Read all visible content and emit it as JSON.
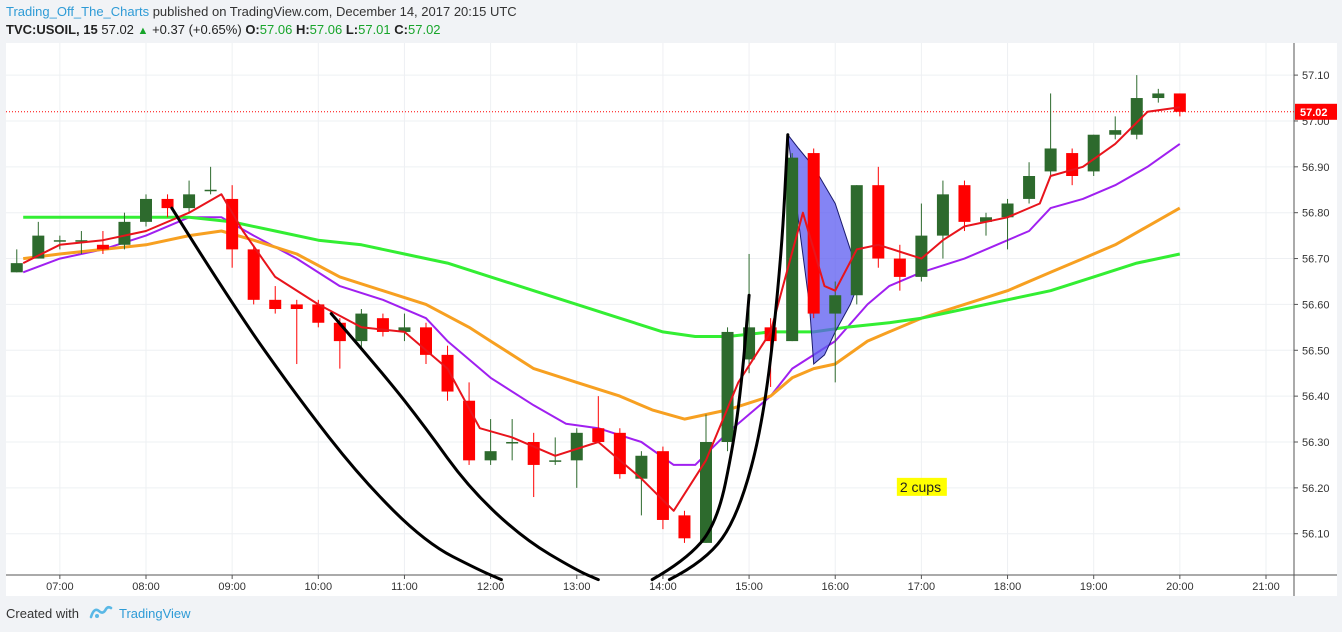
{
  "header": {
    "author": "Trading_Off_The_Charts",
    "published_text": "published on TradingView.com, December 14, 2017 20:15 UTC"
  },
  "symbol_bar": {
    "symbol": "TVC:USOIL, 15",
    "last": "57.02",
    "change": "+0.37 (+0.65%)",
    "o_label": "O:",
    "o": "57.06",
    "h_label": "H:",
    "h": "57.06",
    "l_label": "L:",
    "l": "57.01",
    "c_label": "C:",
    "c": "57.02"
  },
  "footer": {
    "created_with": "Created with",
    "brand": "TradingView"
  },
  "colors": {
    "bull": "#2d6a2d",
    "bear": "#ff0000",
    "ema_red": "#e8141c",
    "ema_purple": "#a020f0",
    "ema_orange": "#f7a021",
    "ema_green": "#33ee33",
    "cup_fill": "#5b5bf0",
    "price_tag": "#ff0000",
    "annotation_bg": "#ffff00"
  },
  "chart_data": {
    "type": "candlestick",
    "x_ticks": [
      "07:00",
      "08:00",
      "09:00",
      "10:00",
      "11:00",
      "12:00",
      "13:00",
      "14:00",
      "15:00",
      "16:00",
      "17:00",
      "18:00",
      "19:00",
      "20:00",
      "21:00"
    ],
    "x_tick_slots": [
      2,
      6,
      10,
      14,
      18,
      22,
      26,
      30,
      34,
      38,
      42,
      46,
      50,
      54,
      58
    ],
    "y_ticks": [
      "56.10",
      "56.20",
      "56.30",
      "56.40",
      "56.50",
      "56.60",
      "56.70",
      "56.80",
      "56.90",
      "57.00",
      "57.10"
    ],
    "y_tick_values": [
      56.1,
      56.2,
      56.3,
      56.4,
      56.5,
      56.6,
      56.7,
      56.8,
      56.9,
      57.0,
      57.1
    ],
    "ylim": [
      56.01,
      57.17
    ],
    "slot_count": 59.8,
    "last_price": 57.02,
    "last_price_label": "57.02",
    "annotation": "2 cups",
    "candles": [
      {
        "o": 56.67,
        "h": 56.72,
        "l": 56.67,
        "c": 56.69
      },
      {
        "o": 56.7,
        "h": 56.78,
        "l": 56.7,
        "c": 56.75
      },
      {
        "o": 56.74,
        "h": 56.75,
        "l": 56.72,
        "c": 56.74
      },
      {
        "o": 56.74,
        "h": 56.76,
        "l": 56.71,
        "c": 56.74
      },
      {
        "o": 56.73,
        "h": 56.76,
        "l": 56.71,
        "c": 56.72
      },
      {
        "o": 56.73,
        "h": 56.8,
        "l": 56.72,
        "c": 56.78
      },
      {
        "o": 56.78,
        "h": 56.84,
        "l": 56.77,
        "c": 56.83
      },
      {
        "o": 56.83,
        "h": 56.84,
        "l": 56.79,
        "c": 56.81
      },
      {
        "o": 56.81,
        "h": 56.87,
        "l": 56.8,
        "c": 56.84
      },
      {
        "o": 56.85,
        "h": 56.9,
        "l": 56.84,
        "c": 56.85
      },
      {
        "o": 56.83,
        "h": 56.86,
        "l": 56.68,
        "c": 56.72
      },
      {
        "o": 56.72,
        "h": 56.73,
        "l": 56.6,
        "c": 56.61
      },
      {
        "o": 56.61,
        "h": 56.64,
        "l": 56.58,
        "c": 56.59
      },
      {
        "o": 56.6,
        "h": 56.61,
        "l": 56.47,
        "c": 56.59
      },
      {
        "o": 56.6,
        "h": 56.61,
        "l": 56.55,
        "c": 56.56
      },
      {
        "o": 56.56,
        "h": 56.57,
        "l": 56.46,
        "c": 56.52
      },
      {
        "o": 56.52,
        "h": 56.59,
        "l": 56.5,
        "c": 56.58
      },
      {
        "o": 56.57,
        "h": 56.58,
        "l": 56.53,
        "c": 56.54
      },
      {
        "o": 56.54,
        "h": 56.58,
        "l": 56.52,
        "c": 56.55
      },
      {
        "o": 56.55,
        "h": 56.56,
        "l": 56.47,
        "c": 56.49
      },
      {
        "o": 56.49,
        "h": 56.51,
        "l": 56.39,
        "c": 56.41
      },
      {
        "o": 56.39,
        "h": 56.43,
        "l": 56.25,
        "c": 56.26
      },
      {
        "o": 56.26,
        "h": 56.35,
        "l": 56.25,
        "c": 56.28
      },
      {
        "o": 56.3,
        "h": 56.35,
        "l": 56.26,
        "c": 56.3
      },
      {
        "o": 56.3,
        "h": 56.32,
        "l": 56.18,
        "c": 56.25
      },
      {
        "o": 56.26,
        "h": 56.31,
        "l": 56.25,
        "c": 56.26
      },
      {
        "o": 56.26,
        "h": 56.33,
        "l": 56.2,
        "c": 56.32
      },
      {
        "o": 56.33,
        "h": 56.4,
        "l": 56.3,
        "c": 56.3
      },
      {
        "o": 56.32,
        "h": 56.33,
        "l": 56.22,
        "c": 56.23
      },
      {
        "o": 56.22,
        "h": 56.28,
        "l": 56.14,
        "c": 56.27
      },
      {
        "o": 56.28,
        "h": 56.29,
        "l": 56.11,
        "c": 56.13
      },
      {
        "o": 56.14,
        "h": 56.15,
        "l": 56.08,
        "c": 56.09
      },
      {
        "o": 56.08,
        "h": 56.36,
        "l": 56.08,
        "c": 56.3
      },
      {
        "o": 56.3,
        "h": 56.55,
        "l": 56.28,
        "c": 56.54
      },
      {
        "o": 56.48,
        "h": 56.71,
        "l": 56.45,
        "c": 56.55
      },
      {
        "o": 56.55,
        "h": 56.57,
        "l": 56.42,
        "c": 56.52
      },
      {
        "o": 56.52,
        "h": 56.93,
        "l": 56.52,
        "c": 56.92
      },
      {
        "o": 56.93,
        "h": 56.94,
        "l": 56.57,
        "c": 56.58
      },
      {
        "o": 56.58,
        "h": 56.65,
        "l": 56.43,
        "c": 56.62
      },
      {
        "o": 56.62,
        "h": 56.86,
        "l": 56.6,
        "c": 56.86
      },
      {
        "o": 56.86,
        "h": 56.9,
        "l": 56.68,
        "c": 56.7
      },
      {
        "o": 56.7,
        "h": 56.73,
        "l": 56.63,
        "c": 56.66
      },
      {
        "o": 56.66,
        "h": 56.82,
        "l": 56.65,
        "c": 56.75
      },
      {
        "o": 56.75,
        "h": 56.87,
        "l": 56.7,
        "c": 56.84
      },
      {
        "o": 56.86,
        "h": 56.87,
        "l": 56.76,
        "c": 56.78
      },
      {
        "o": 56.78,
        "h": 56.8,
        "l": 56.75,
        "c": 56.79
      },
      {
        "o": 56.79,
        "h": 56.83,
        "l": 56.72,
        "c": 56.82
      },
      {
        "o": 56.83,
        "h": 56.91,
        "l": 56.82,
        "c": 56.88
      },
      {
        "o": 56.89,
        "h": 57.06,
        "l": 56.88,
        "c": 56.94
      },
      {
        "o": 56.93,
        "h": 56.94,
        "l": 56.86,
        "c": 56.88
      },
      {
        "o": 56.89,
        "h": 56.97,
        "l": 56.88,
        "c": 56.97
      },
      {
        "o": 56.97,
        "h": 57.01,
        "l": 56.96,
        "c": 56.98
      },
      {
        "o": 56.97,
        "h": 57.1,
        "l": 56.96,
        "c": 57.05
      },
      {
        "o": 57.05,
        "h": 57.07,
        "l": 57.04,
        "c": 57.06
      },
      {
        "o": 57.06,
        "h": 57.06,
        "l": 57.01,
        "c": 57.02
      }
    ],
    "lines": [
      {
        "id": "ema-red",
        "color": "#e8141c",
        "width": 2,
        "points": [
          [
            0.3,
            56.69
          ],
          [
            2,
            56.73
          ],
          [
            4,
            56.74
          ],
          [
            6,
            56.76
          ],
          [
            8,
            56.8
          ],
          [
            9.5,
            56.84
          ],
          [
            10.5,
            56.76
          ],
          [
            12,
            56.66
          ],
          [
            14,
            56.6
          ],
          [
            16,
            56.55
          ],
          [
            18,
            56.54
          ],
          [
            20,
            56.46
          ],
          [
            21.5,
            56.33
          ],
          [
            23,
            56.31
          ],
          [
            25,
            56.27
          ],
          [
            27,
            56.3
          ],
          [
            29,
            56.22
          ],
          [
            30.5,
            56.15
          ],
          [
            32,
            56.26
          ],
          [
            33.5,
            56.43
          ],
          [
            35,
            56.54
          ],
          [
            36.5,
            56.8
          ],
          [
            37.5,
            56.64
          ],
          [
            38,
            56.63
          ],
          [
            39,
            56.72
          ],
          [
            40,
            56.73
          ],
          [
            42,
            56.7
          ],
          [
            43,
            56.74
          ],
          [
            44,
            56.77
          ],
          [
            46,
            56.79
          ],
          [
            47.5,
            56.82
          ],
          [
            48,
            56.88
          ],
          [
            49.5,
            56.9
          ],
          [
            51,
            56.95
          ],
          [
            52.5,
            57.02
          ],
          [
            54,
            57.03
          ]
        ]
      },
      {
        "id": "ema-purple",
        "color": "#a020f0",
        "width": 2,
        "points": [
          [
            0.3,
            56.67
          ],
          [
            2,
            56.7
          ],
          [
            4,
            56.72
          ],
          [
            6,
            56.75
          ],
          [
            8,
            56.79
          ],
          [
            9.5,
            56.79
          ],
          [
            11,
            56.75
          ],
          [
            13,
            56.7
          ],
          [
            15,
            56.64
          ],
          [
            17,
            56.61
          ],
          [
            19,
            56.57
          ],
          [
            20,
            56.52
          ],
          [
            22,
            56.44
          ],
          [
            24,
            56.38
          ],
          [
            25.5,
            56.34
          ],
          [
            27,
            56.33
          ],
          [
            29,
            56.3
          ],
          [
            30.5,
            56.25
          ],
          [
            31.5,
            56.25
          ],
          [
            33,
            56.32
          ],
          [
            35,
            56.4
          ],
          [
            36,
            56.46
          ],
          [
            37,
            56.49
          ],
          [
            38,
            56.52
          ],
          [
            39.5,
            56.6
          ],
          [
            40.5,
            56.64
          ],
          [
            42,
            56.67
          ],
          [
            44,
            56.7
          ],
          [
            45.5,
            56.73
          ],
          [
            47,
            56.76
          ],
          [
            48,
            56.81
          ],
          [
            49.5,
            56.83
          ],
          [
            51,
            56.86
          ],
          [
            52.5,
            56.9
          ],
          [
            54,
            56.95
          ]
        ]
      },
      {
        "id": "ema-orange",
        "color": "#f7a021",
        "width": 3,
        "points": [
          [
            0.3,
            56.7
          ],
          [
            2,
            56.71
          ],
          [
            4,
            56.72
          ],
          [
            6,
            56.73
          ],
          [
            8,
            56.75
          ],
          [
            9.5,
            56.76
          ],
          [
            11,
            56.74
          ],
          [
            13,
            56.71
          ],
          [
            15,
            56.66
          ],
          [
            17,
            56.63
          ],
          [
            19,
            56.6
          ],
          [
            21,
            56.55
          ],
          [
            22,
            56.52
          ],
          [
            24,
            56.46
          ],
          [
            26,
            56.43
          ],
          [
            28,
            56.4
          ],
          [
            29.5,
            56.37
          ],
          [
            31,
            56.35
          ],
          [
            33,
            56.37
          ],
          [
            35,
            56.4
          ],
          [
            36,
            56.44
          ],
          [
            37,
            56.46
          ],
          [
            38,
            56.47
          ],
          [
            39.5,
            56.52
          ],
          [
            40.5,
            56.54
          ],
          [
            42,
            56.57
          ],
          [
            44,
            56.6
          ],
          [
            46,
            56.63
          ],
          [
            47.5,
            56.66
          ],
          [
            48,
            56.67
          ],
          [
            49.5,
            56.7
          ],
          [
            51,
            56.73
          ],
          [
            52.5,
            56.77
          ],
          [
            54,
            56.81
          ]
        ]
      },
      {
        "id": "ema-green",
        "color": "#33ee33",
        "width": 3,
        "points": [
          [
            0.3,
            56.79
          ],
          [
            4,
            56.79
          ],
          [
            8,
            56.79
          ],
          [
            10,
            56.78
          ],
          [
            12,
            56.76
          ],
          [
            14,
            56.74
          ],
          [
            16,
            56.73
          ],
          [
            18,
            56.71
          ],
          [
            20,
            56.69
          ],
          [
            22,
            56.66
          ],
          [
            24,
            56.63
          ],
          [
            26,
            56.6
          ],
          [
            28,
            56.57
          ],
          [
            30,
            56.54
          ],
          [
            31.5,
            56.53
          ],
          [
            33,
            56.53
          ],
          [
            35,
            56.54
          ],
          [
            37,
            56.54
          ],
          [
            38.5,
            56.55
          ],
          [
            40.5,
            56.56
          ],
          [
            42,
            56.57
          ],
          [
            44,
            56.59
          ],
          [
            46,
            56.61
          ],
          [
            48,
            56.63
          ],
          [
            50,
            56.66
          ],
          [
            52,
            56.69
          ],
          [
            54,
            56.71
          ]
        ]
      }
    ],
    "cups": [
      {
        "id": "cup-left",
        "points": [
          [
            7.2,
            56.81
          ],
          [
            10,
            56.6
          ],
          [
            13,
            56.4
          ],
          [
            16,
            56.22
          ],
          [
            19,
            56.08
          ],
          [
            21.5,
            56.02
          ],
          [
            22.5,
            56.0
          ]
        ]
      },
      {
        "id": "cup-right-outer",
        "points": [
          [
            14.6,
            56.58
          ],
          [
            17,
            56.45
          ],
          [
            19,
            56.33
          ],
          [
            21,
            56.2
          ],
          [
            23.5,
            56.09
          ],
          [
            26,
            56.02
          ],
          [
            27,
            56.0
          ]
        ]
      },
      {
        "id": "cup-right-inner",
        "points": [
          [
            29.5,
            56.0
          ],
          [
            31,
            56.04
          ],
          [
            32.5,
            56.12
          ],
          [
            33.3,
            56.3
          ],
          [
            33.7,
            56.45
          ],
          [
            34,
            56.62
          ]
        ]
      },
      {
        "id": "cup-right-outer2",
        "points": [
          [
            30.3,
            56.0
          ],
          [
            32,
            56.04
          ],
          [
            33.5,
            56.14
          ],
          [
            34.7,
            56.35
          ],
          [
            35.5,
            56.7
          ],
          [
            35.8,
            56.97
          ]
        ]
      }
    ],
    "shaded_cup": {
      "id": "shaded-cup",
      "points": [
        [
          35.8,
          56.97
        ],
        [
          36.3,
          56.94
        ],
        [
          37,
          56.9
        ],
        [
          38,
          56.82
        ],
        [
          38.7,
          56.72
        ],
        [
          39.2,
          56.66
        ],
        [
          38.7,
          56.6
        ],
        [
          38,
          56.54
        ],
        [
          37.5,
          56.49
        ],
        [
          37,
          56.47
        ],
        [
          36.8,
          56.6
        ],
        [
          36.3,
          56.78
        ],
        [
          35.8,
          56.97
        ]
      ]
    },
    "annotation_position": {
      "slot": 41,
      "value": 56.2
    }
  }
}
